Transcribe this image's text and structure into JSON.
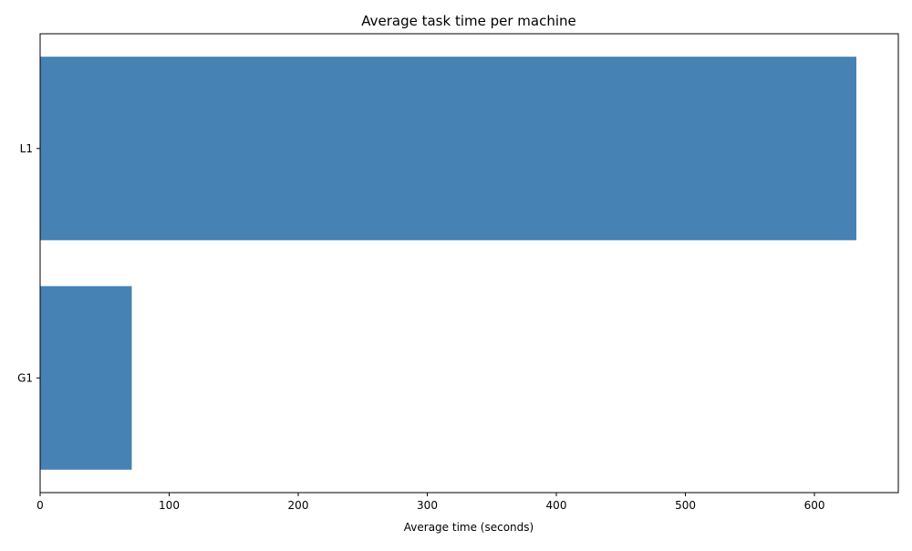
{
  "chart_data": {
    "type": "bar",
    "orientation": "horizontal",
    "title": "Average task time per machine",
    "xlabel": "Average time (seconds)",
    "ylabel": "",
    "categories": [
      "L1",
      "G1"
    ],
    "values": [
      632.5,
      71.0
    ],
    "xlim": [
      0,
      665
    ],
    "x_ticks": [
      0,
      100,
      200,
      300,
      400,
      500,
      600
    ],
    "grid": false,
    "legend": "none",
    "bar_color": "#4682b4"
  }
}
